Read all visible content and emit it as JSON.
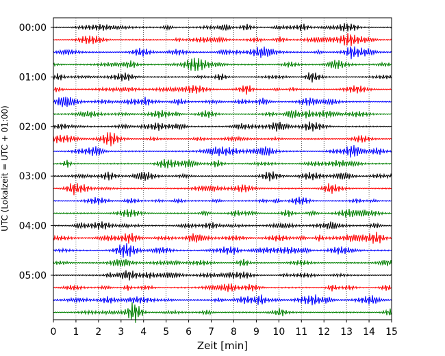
{
  "chart_data": {
    "type": "line",
    "title": "",
    "xlabel": "Zeit  [min]",
    "ylabel": "UTC (Lokalzeit = UTC + 01:00)",
    "xlim": [
      0,
      15
    ],
    "x_ticks": [
      "0",
      "1",
      "2",
      "3",
      "4",
      "5",
      "6",
      "7",
      "8",
      "9",
      "10",
      "11",
      "12",
      "13",
      "14",
      "15"
    ],
    "y_tick_labels": [
      "00:00",
      "01:00",
      "02:00",
      "03:00",
      "04:00",
      "05:00"
    ],
    "rows_per_hour": 4,
    "row_minutes": 15,
    "row_count": 24,
    "row_colors": [
      "#000000",
      "#ff0000",
      "#0000ff",
      "#008000"
    ],
    "grid": {
      "vertical": "dotted",
      "horizontal": "none"
    }
  }
}
